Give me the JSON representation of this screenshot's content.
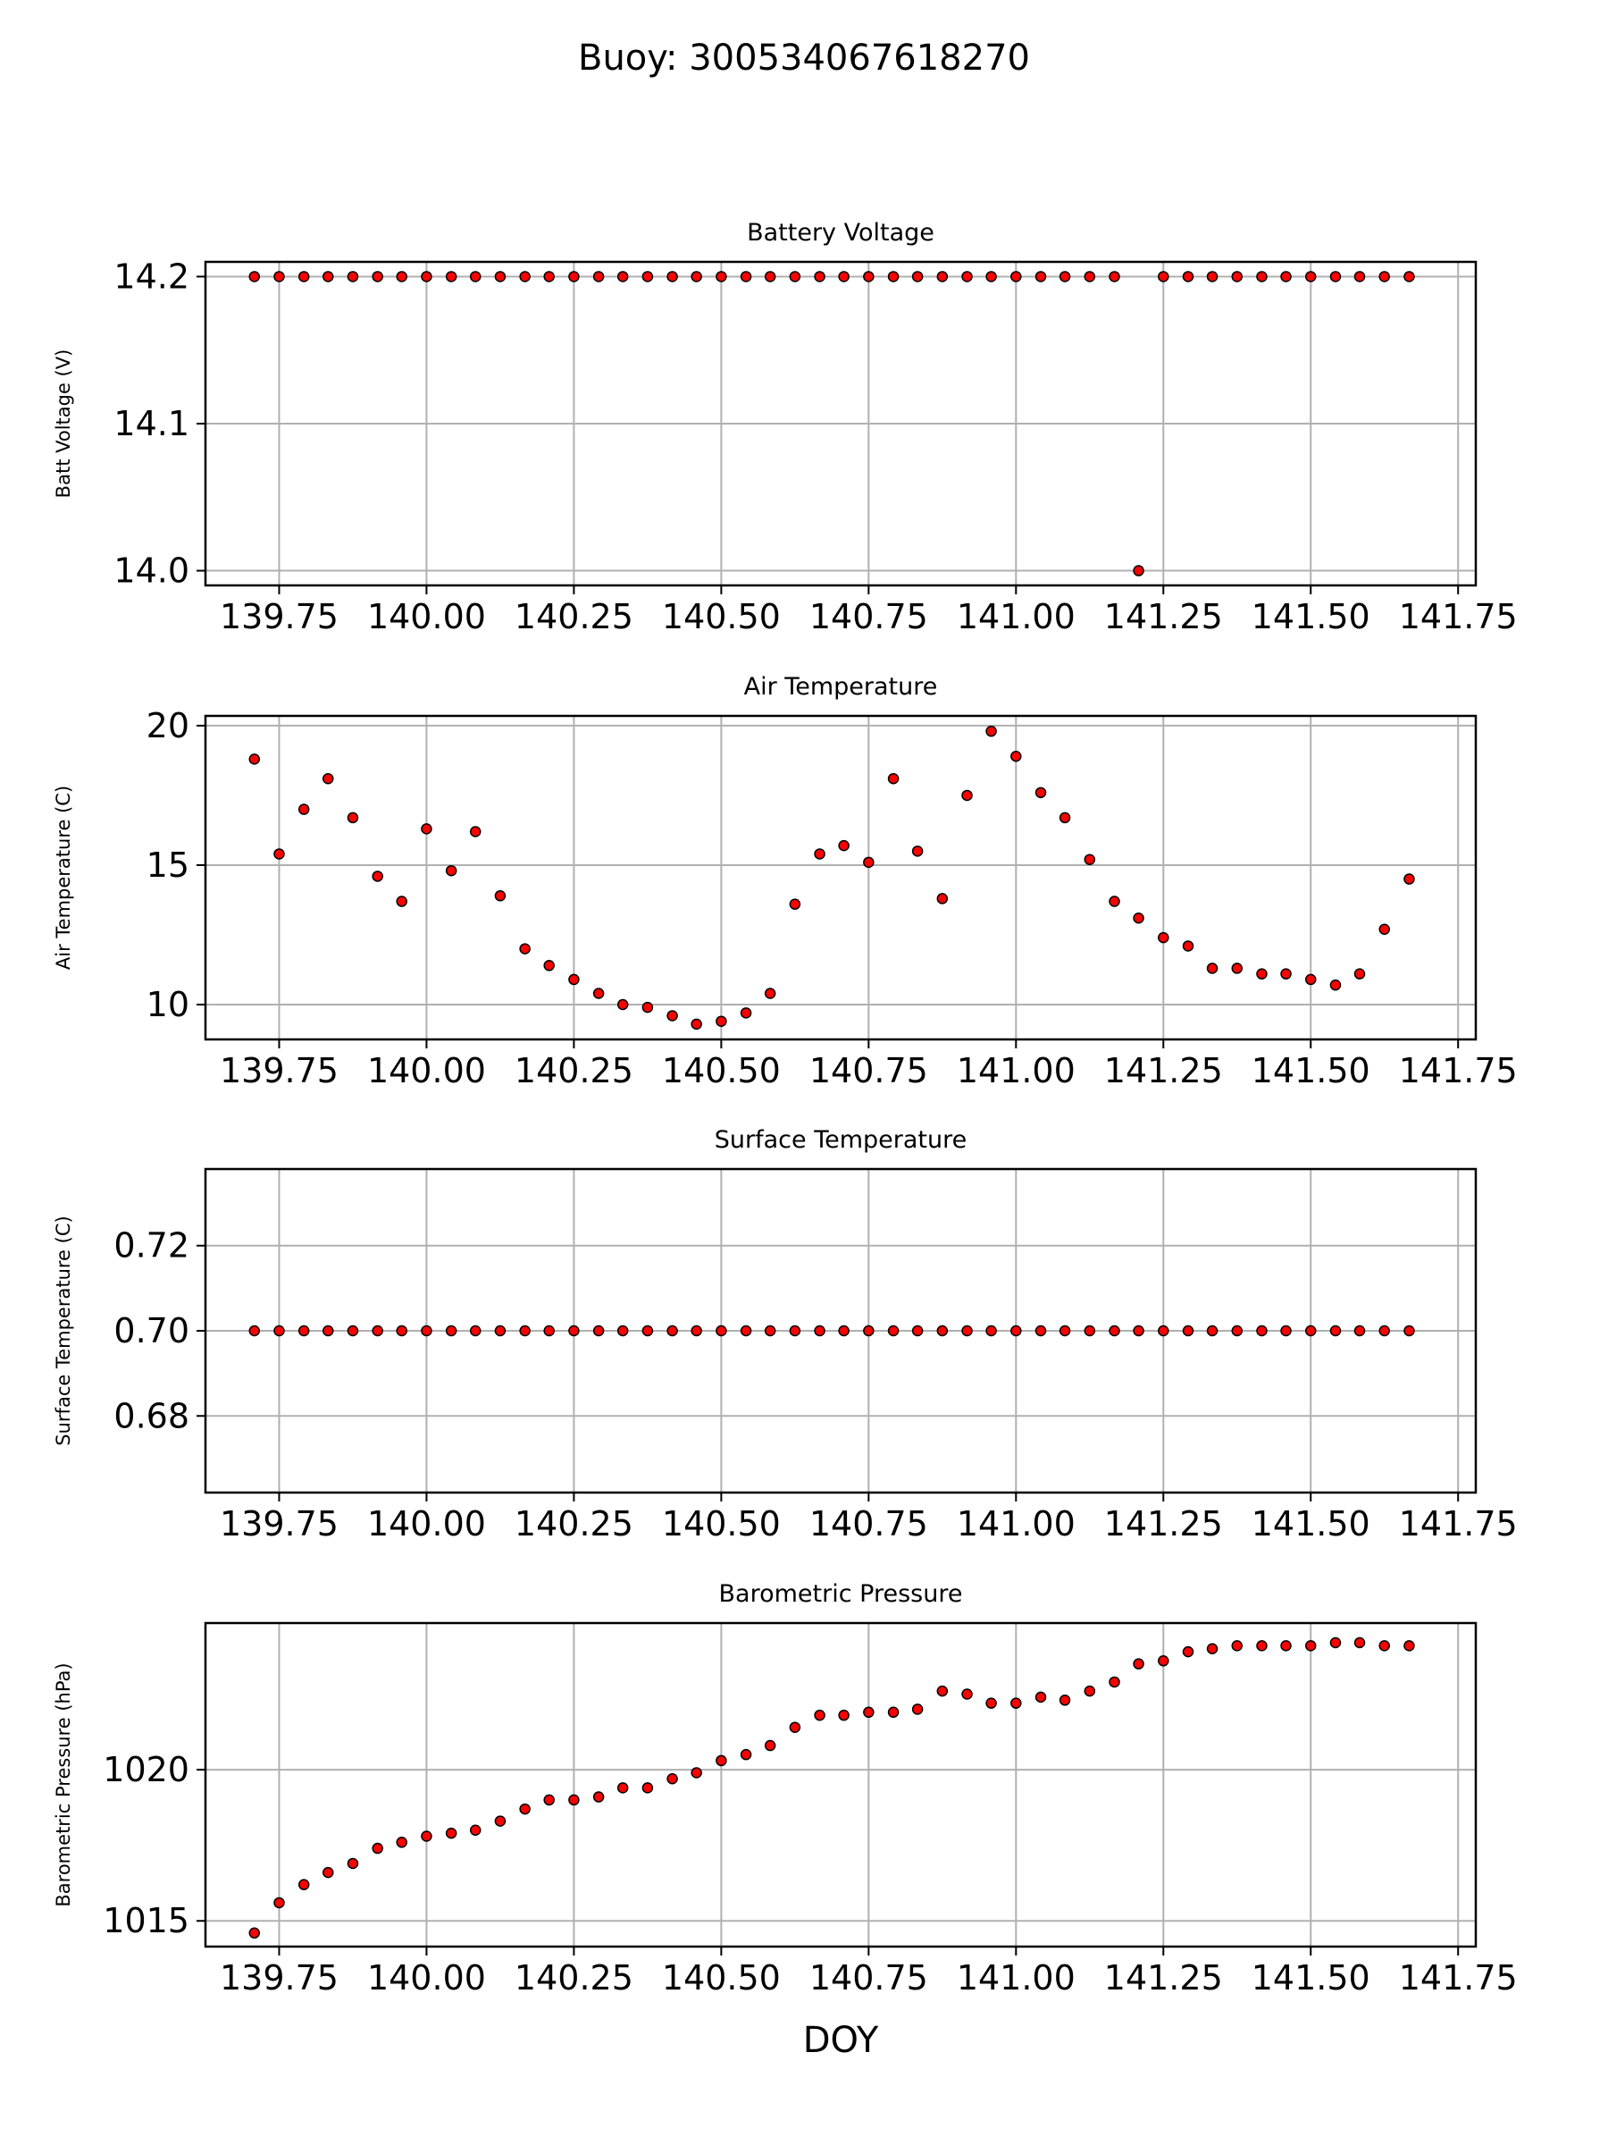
{
  "figure": {
    "suptitle": "Buoy: 300534067618270"
  },
  "chart_data": [
    {
      "type": "scatter",
      "title": "Battery Voltage",
      "xlabel": "",
      "ylabel": "Batt Voltage (V)",
      "xlim": [
        139.625,
        141.78
      ],
      "ylim": [
        13.99,
        14.21
      ],
      "xticks": [
        139.75,
        140.0,
        140.25,
        140.5,
        140.75,
        141.0,
        141.25,
        141.5,
        141.75
      ],
      "xtick_labels": [
        "139.75",
        "140.00",
        "140.25",
        "140.50",
        "140.75",
        "141.00",
        "141.25",
        "141.50",
        "141.75"
      ],
      "yticks": [
        14.0,
        14.1,
        14.2
      ],
      "ytick_labels": [
        "14.0",
        "14.1",
        "14.2"
      ],
      "grid": true,
      "marker_color": "#ff0000",
      "marker_edge": "#000000",
      "x": [
        139.708,
        139.75,
        139.792,
        139.833,
        139.875,
        139.917,
        139.958,
        140.0,
        140.042,
        140.083,
        140.125,
        140.167,
        140.208,
        140.25,
        140.292,
        140.333,
        140.375,
        140.417,
        140.458,
        140.5,
        140.542,
        140.583,
        140.625,
        140.667,
        140.708,
        140.75,
        140.792,
        140.833,
        140.875,
        140.917,
        140.958,
        141.0,
        141.042,
        141.083,
        141.125,
        141.167,
        141.208,
        141.25,
        141.292,
        141.333,
        141.375,
        141.417,
        141.458,
        141.5,
        141.542,
        141.583,
        141.625,
        141.667
      ],
      "y": [
        14.2,
        14.2,
        14.2,
        14.2,
        14.2,
        14.2,
        14.2,
        14.2,
        14.2,
        14.2,
        14.2,
        14.2,
        14.2,
        14.2,
        14.2,
        14.2,
        14.2,
        14.2,
        14.2,
        14.2,
        14.2,
        14.2,
        14.2,
        14.2,
        14.2,
        14.2,
        14.2,
        14.2,
        14.2,
        14.2,
        14.2,
        14.2,
        14.2,
        14.2,
        14.2,
        14.2,
        14.0,
        14.2,
        14.2,
        14.2,
        14.2,
        14.2,
        14.2,
        14.2,
        14.2,
        14.2,
        14.2,
        14.2
      ]
    },
    {
      "type": "scatter",
      "title": "Air Temperature",
      "xlabel": "",
      "ylabel": "Air Temperature (C)",
      "xlim": [
        139.625,
        141.78
      ],
      "ylim": [
        8.75,
        20.35
      ],
      "xticks": [
        139.75,
        140.0,
        140.25,
        140.5,
        140.75,
        141.0,
        141.25,
        141.5,
        141.75
      ],
      "xtick_labels": [
        "139.75",
        "140.00",
        "140.25",
        "140.50",
        "140.75",
        "141.00",
        "141.25",
        "141.50",
        "141.75"
      ],
      "yticks": [
        10,
        15,
        20
      ],
      "ytick_labels": [
        "10",
        "15",
        "20"
      ],
      "grid": true,
      "marker_color": "#ff0000",
      "marker_edge": "#000000",
      "x": [
        139.708,
        139.75,
        139.792,
        139.833,
        139.875,
        139.917,
        139.958,
        140.0,
        140.042,
        140.083,
        140.125,
        140.167,
        140.208,
        140.25,
        140.292,
        140.333,
        140.375,
        140.417,
        140.458,
        140.5,
        140.542,
        140.583,
        140.625,
        140.667,
        140.708,
        140.75,
        140.792,
        140.833,
        140.875,
        140.917,
        140.958,
        141.0,
        141.042,
        141.083,
        141.125,
        141.167,
        141.208,
        141.25,
        141.292,
        141.333,
        141.375,
        141.417,
        141.458,
        141.5,
        141.542,
        141.583,
        141.625,
        141.667
      ],
      "y": [
        18.8,
        15.4,
        17.0,
        18.1,
        16.7,
        14.6,
        13.7,
        16.3,
        14.8,
        16.2,
        13.9,
        12.0,
        11.4,
        10.9,
        10.4,
        10.0,
        9.9,
        9.6,
        9.3,
        9.4,
        9.7,
        10.4,
        13.6,
        15.4,
        15.7,
        15.1,
        18.1,
        15.5,
        13.8,
        17.5,
        19.8,
        18.9,
        17.6,
        16.7,
        15.2,
        13.7,
        13.1,
        12.4,
        12.1,
        11.3,
        11.3,
        11.1,
        11.1,
        10.9,
        10.7,
        11.1,
        12.7,
        14.5
      ]
    },
    {
      "type": "scatter",
      "title": "Surface Temperature",
      "xlabel": "",
      "ylabel": "Surface Temperature (C)",
      "xlim": [
        139.625,
        141.78
      ],
      "ylim": [
        0.662,
        0.738
      ],
      "xticks": [
        139.75,
        140.0,
        140.25,
        140.5,
        140.75,
        141.0,
        141.25,
        141.5,
        141.75
      ],
      "xtick_labels": [
        "139.75",
        "140.00",
        "140.25",
        "140.50",
        "140.75",
        "141.00",
        "141.25",
        "141.50",
        "141.75"
      ],
      "yticks": [
        0.68,
        0.7,
        0.72
      ],
      "ytick_labels": [
        "0.68",
        "0.70",
        "0.72"
      ],
      "grid": true,
      "marker_color": "#ff0000",
      "marker_edge": "#000000",
      "x": [
        139.708,
        139.75,
        139.792,
        139.833,
        139.875,
        139.917,
        139.958,
        140.0,
        140.042,
        140.083,
        140.125,
        140.167,
        140.208,
        140.25,
        140.292,
        140.333,
        140.375,
        140.417,
        140.458,
        140.5,
        140.542,
        140.583,
        140.625,
        140.667,
        140.708,
        140.75,
        140.792,
        140.833,
        140.875,
        140.917,
        140.958,
        141.0,
        141.042,
        141.083,
        141.125,
        141.167,
        141.208,
        141.25,
        141.292,
        141.333,
        141.375,
        141.417,
        141.458,
        141.5,
        141.542,
        141.583,
        141.625,
        141.667
      ],
      "y": [
        0.7,
        0.7,
        0.7,
        0.7,
        0.7,
        0.7,
        0.7,
        0.7,
        0.7,
        0.7,
        0.7,
        0.7,
        0.7,
        0.7,
        0.7,
        0.7,
        0.7,
        0.7,
        0.7,
        0.7,
        0.7,
        0.7,
        0.7,
        0.7,
        0.7,
        0.7,
        0.7,
        0.7,
        0.7,
        0.7,
        0.7,
        0.7,
        0.7,
        0.7,
        0.7,
        0.7,
        0.7,
        0.7,
        0.7,
        0.7,
        0.7,
        0.7,
        0.7,
        0.7,
        0.7,
        0.7,
        0.7,
        0.7
      ]
    },
    {
      "type": "scatter",
      "title": "Barometric Pressure",
      "xlabel": "DOY",
      "ylabel": "Barometric Pressure (hPa)",
      "xlim": [
        139.625,
        141.78
      ],
      "ylim": [
        1014.15,
        1024.85
      ],
      "xticks": [
        139.75,
        140.0,
        140.25,
        140.5,
        140.75,
        141.0,
        141.25,
        141.5,
        141.75
      ],
      "xtick_labels": [
        "139.75",
        "140.00",
        "140.25",
        "140.50",
        "140.75",
        "141.00",
        "141.25",
        "141.50",
        "141.75"
      ],
      "yticks": [
        1015,
        1020
      ],
      "ytick_labels": [
        "1015",
        "1020"
      ],
      "grid": true,
      "marker_color": "#ff0000",
      "marker_edge": "#000000",
      "x": [
        139.708,
        139.75,
        139.792,
        139.833,
        139.875,
        139.917,
        139.958,
        140.0,
        140.042,
        140.083,
        140.125,
        140.167,
        140.208,
        140.25,
        140.292,
        140.333,
        140.375,
        140.417,
        140.458,
        140.5,
        140.542,
        140.583,
        140.625,
        140.667,
        140.708,
        140.75,
        140.792,
        140.833,
        140.875,
        140.917,
        140.958,
        141.0,
        141.042,
        141.083,
        141.125,
        141.167,
        141.208,
        141.25,
        141.292,
        141.333,
        141.375,
        141.417,
        141.458,
        141.5,
        141.542,
        141.583,
        141.625,
        141.667
      ],
      "y": [
        1014.6,
        1015.6,
        1016.2,
        1016.6,
        1016.9,
        1017.4,
        1017.6,
        1017.8,
        1017.9,
        1018.0,
        1018.3,
        1018.7,
        1019.0,
        1019.0,
        1019.1,
        1019.4,
        1019.4,
        1019.7,
        1019.9,
        1020.3,
        1020.5,
        1020.8,
        1021.4,
        1021.8,
        1021.8,
        1021.9,
        1021.9,
        1022.0,
        1022.6,
        1022.5,
        1022.2,
        1022.2,
        1022.4,
        1022.3,
        1022.6,
        1022.9,
        1023.5,
        1023.6,
        1023.9,
        1024.0,
        1024.1,
        1024.1,
        1024.1,
        1024.1,
        1024.2,
        1024.2,
        1024.1,
        1024.1
      ]
    }
  ]
}
